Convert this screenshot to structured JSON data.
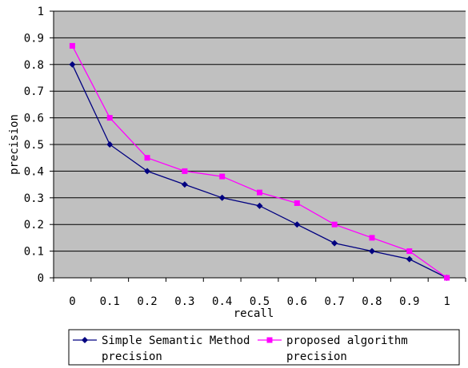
{
  "chart_data": {
    "type": "line",
    "x_categories": [
      "0",
      "0.1",
      "0.2",
      "0.3",
      "0.4",
      "0.5",
      "0.6",
      "0.7",
      "0.8",
      "0.9",
      "1"
    ],
    "xlabel": "recall",
    "ylabel": "precision",
    "ylim": [
      0,
      1
    ],
    "y_ticks": [
      "0",
      "0.1",
      "0.2",
      "0.3",
      "0.4",
      "0.5",
      "0.6",
      "0.7",
      "0.8",
      "0.9",
      "1"
    ],
    "grid": "horizontal",
    "plot_background": "#c0c0c0",
    "legend_position": "bottom",
    "series": [
      {
        "name": "Simple Semantic Method precision",
        "name_lines": [
          "Simple Semantic Method",
          "precision"
        ],
        "color": "#000080",
        "marker": "diamond",
        "values": [
          0.8,
          0.5,
          0.4,
          0.35,
          0.3,
          0.27,
          0.2,
          0.13,
          0.1,
          0.07,
          0.0
        ]
      },
      {
        "name": "proposed algorithm precision",
        "name_lines": [
          "proposed algorithm",
          "precision"
        ],
        "color": "#ff00ff",
        "marker": "square",
        "values": [
          0.87,
          0.6,
          0.45,
          0.4,
          0.38,
          0.32,
          0.28,
          0.2,
          0.15,
          0.1,
          0.0
        ]
      }
    ]
  }
}
